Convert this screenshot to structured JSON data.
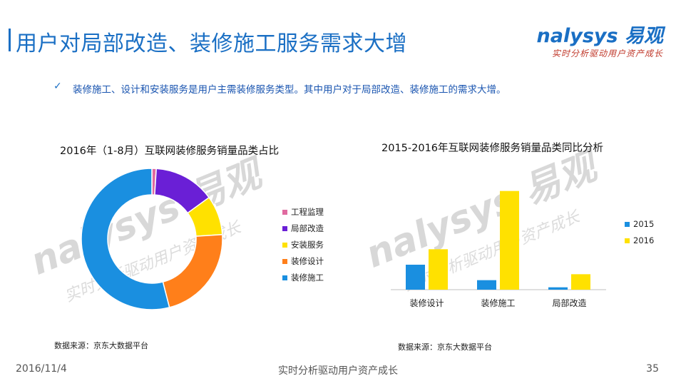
{
  "header": {
    "title": "用户对局部改造、装修施工服务需求大增",
    "logo_text": "nalysys 易观",
    "logo_tagline": "实时分析驱动用户资产成长"
  },
  "bullet": {
    "check_icon": "✓",
    "text": "装修施工、设计和安装服务是用户主需装修服务类型。其中用户对于局部改造、装修施工的需求大增。"
  },
  "donut": {
    "title": "2016年（1-8月）互联网装修服务销量品类占比",
    "source": "数据来源：京东大数据平台",
    "legend": [
      "工程监理",
      "局部改造",
      "安装服务",
      "装修设计",
      "装修施工"
    ]
  },
  "bars": {
    "title": "2015-2016年互联网装修服务销量品类同比分析",
    "source": "数据来源：京东大数据平台",
    "legend": [
      "2015",
      "2016"
    ],
    "categories": [
      "装修设计",
      "装修施工",
      "局部改造"
    ]
  },
  "watermark": {
    "logo": "nalysys 易观",
    "tagline": "实时分析驱动用户资产成长"
  },
  "footer": {
    "date": "2016/11/4",
    "center": "实时分析驱动用户资产成长",
    "page": "35"
  },
  "chart_data": [
    {
      "type": "pie",
      "title": "2016年（1-8月）互联网装修服务销量品类占比",
      "labels": [
        "工程监理",
        "局部改造",
        "安装服务",
        "装修设计",
        "装修施工"
      ],
      "values": [
        1,
        14,
        9,
        22,
        54
      ],
      "colors": [
        "#e06aa0",
        "#6a1fd6",
        "#ffe100",
        "#ff7f1a",
        "#1a8fe0"
      ],
      "legend": "right"
    },
    {
      "type": "bar",
      "title": "2015-2016年互联网装修服务销量品类同比分析",
      "categories": [
        "装修设计",
        "装修施工",
        "局部改造"
      ],
      "series": [
        {
          "name": "2015",
          "values": [
            21,
            8,
            2
          ],
          "color": "#1a8fe0"
        },
        {
          "name": "2016",
          "values": [
            34,
            83,
            13
          ],
          "color": "#ffe100"
        }
      ],
      "ylim": [
        0,
        90
      ],
      "legend": "right",
      "grid": false
    }
  ]
}
